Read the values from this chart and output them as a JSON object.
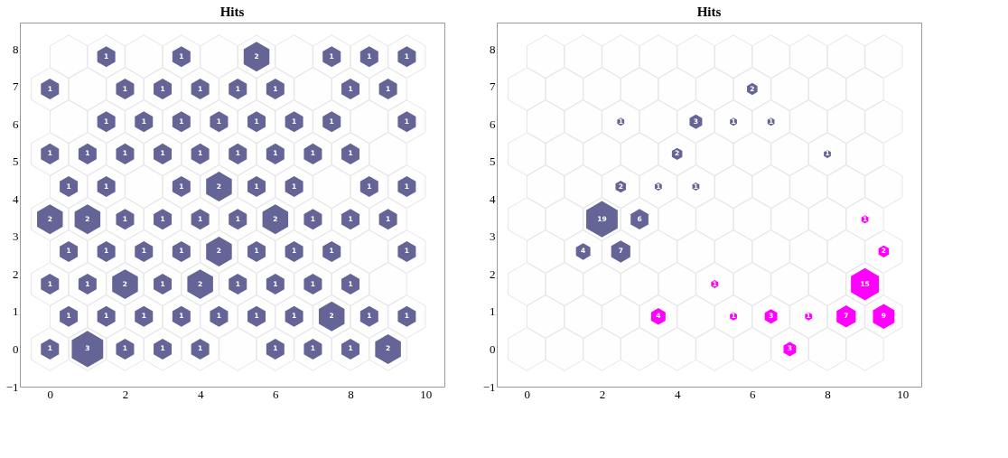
{
  "chart_data": [
    {
      "type": "bubble",
      "title": "Hits",
      "xlim": [
        -0.8,
        10.5
      ],
      "ylim": [
        -1,
        8.7
      ],
      "xticks": [
        0,
        2,
        4,
        6,
        8,
        10
      ],
      "yticks": [
        -1,
        0,
        1,
        2,
        3,
        4,
        5,
        6,
        7,
        8
      ],
      "grid": false,
      "series": [
        {
          "color": "#646496",
          "x": [
            0,
            1,
            2,
            3,
            4,
            6,
            7,
            8,
            9,
            0.5,
            1.5,
            2.5,
            3.5,
            4.5,
            5.5,
            6.5,
            7.5,
            8.5,
            9.5,
            0,
            1,
            2,
            3,
            4,
            5,
            6,
            7,
            8,
            0.5,
            1.5,
            2.5,
            3.5,
            4.5,
            5.5,
            6.5,
            7.5,
            9.5,
            0,
            1,
            2,
            3,
            4,
            5,
            6,
            7,
            8,
            9,
            0.5,
            1.5,
            3.5,
            4.5,
            5.5,
            6.5,
            8.5,
            9.5,
            0,
            1,
            2,
            3,
            4,
            5,
            6,
            7,
            8,
            1.5,
            2.5,
            3.5,
            4.5,
            5.5,
            6.5,
            7.5,
            9.5,
            0,
            2,
            3,
            4,
            5,
            6,
            8,
            9,
            1.5,
            3.5,
            5.5,
            7.5,
            8.5,
            9.5
          ],
          "values": [
            0,
            0,
            0,
            0,
            0,
            0,
            0,
            0,
            0,
            0.87,
            0.87,
            0.87,
            0.87,
            0.87,
            0.87,
            0.87,
            0.87,
            0.87,
            0.87,
            1.73,
            1.73,
            1.73,
            1.73,
            1.73,
            1.73,
            1.73,
            1.73,
            1.73,
            2.6,
            2.6,
            2.6,
            2.6,
            2.6,
            2.6,
            2.6,
            2.6,
            2.6,
            3.46,
            3.46,
            3.46,
            3.46,
            3.46,
            3.46,
            3.46,
            3.46,
            3.46,
            3.46,
            4.33,
            4.33,
            4.33,
            4.33,
            4.33,
            4.33,
            4.33,
            4.33,
            5.2,
            5.2,
            5.2,
            5.2,
            5.2,
            5.2,
            5.2,
            5.2,
            5.2,
            6.06,
            6.06,
            6.06,
            6.06,
            6.06,
            6.06,
            6.06,
            6.06,
            6.93,
            6.93,
            6.93,
            6.93,
            6.93,
            6.93,
            6.93,
            6.93,
            7.79,
            7.79,
            7.79,
            7.79,
            7.79,
            7.79
          ],
          "sizes": [
            0.33,
            1,
            0.33,
            0.33,
            0.33,
            0.33,
            0.33,
            0.33,
            0.67,
            0.33,
            0.33,
            0.33,
            0.33,
            0.33,
            0.33,
            0.33,
            0.67,
            0.33,
            0.33,
            0.33,
            0.33,
            0.67,
            0.33,
            0.67,
            0.33,
            0.33,
            0.33,
            0.33,
            0.33,
            0.33,
            0.33,
            0.33,
            0.67,
            0.33,
            0.33,
            0.33,
            0.33,
            0.67,
            0.67,
            0.33,
            0.33,
            0.33,
            0.33,
            0.67,
            0.33,
            0.33,
            0.33,
            0.33,
            0.33,
            0.33,
            0.67,
            0.33,
            0.33,
            0.33,
            0.33,
            0.33,
            0.33,
            0.33,
            0.33,
            0.33,
            0.33,
            0.33,
            0.33,
            0.33,
            0.33,
            0.33,
            0.33,
            0.33,
            0.33,
            0.33,
            0.33,
            0.33,
            0.33,
            0.33,
            0.33,
            0.33,
            0.33,
            0.33,
            0.33,
            0.33,
            0.33,
            0.33,
            0.67,
            0.33,
            0.33,
            0.33
          ]
        }
      ],
      "annotations": [
        {
          "text": "1",
          "x": 0,
          "y": 0
        },
        {
          "text": "3",
          "x": 1,
          "y": 0
        },
        {
          "text": "1",
          "x": 2,
          "y": 0
        },
        {
          "text": "1",
          "x": 3,
          "y": 0
        },
        {
          "text": "1",
          "x": 4,
          "y": 0
        },
        {
          "text": "1",
          "x": 6,
          "y": 0
        },
        {
          "text": "1",
          "x": 7,
          "y": 0
        },
        {
          "text": "1",
          "x": 8,
          "y": 0
        },
        {
          "text": "2",
          "x": 9,
          "y": 0
        },
        {
          "text": "1",
          "x": 0.5,
          "y": 0.87
        },
        {
          "text": "1",
          "x": 1.5,
          "y": 0.87
        },
        {
          "text": "1",
          "x": 2.5,
          "y": 0.87
        },
        {
          "text": "1",
          "x": 3.5,
          "y": 0.87
        },
        {
          "text": "1",
          "x": 4.5,
          "y": 0.87
        },
        {
          "text": "1",
          "x": 5.5,
          "y": 0.87
        },
        {
          "text": "1",
          "x": 6.5,
          "y": 0.87
        },
        {
          "text": "2",
          "x": 7.5,
          "y": 0.87
        },
        {
          "text": "1",
          "x": 8.5,
          "y": 0.87
        },
        {
          "text": "1",
          "x": 9.5,
          "y": 0.87
        },
        {
          "text": "1",
          "x": 0,
          "y": 1.73
        },
        {
          "text": "1",
          "x": 1,
          "y": 1.73
        },
        {
          "text": "2",
          "x": 2,
          "y": 1.73
        },
        {
          "text": "1",
          "x": 3,
          "y": 1.73
        },
        {
          "text": "2",
          "x": 4,
          "y": 1.73
        },
        {
          "text": "1",
          "x": 5,
          "y": 1.73
        },
        {
          "text": "1",
          "x": 6,
          "y": 1.73
        },
        {
          "text": "1",
          "x": 7,
          "y": 1.73
        },
        {
          "text": "1",
          "x": 8,
          "y": 1.73
        },
        {
          "text": "1",
          "x": 0.5,
          "y": 2.6
        },
        {
          "text": "1",
          "x": 1.5,
          "y": 2.6
        },
        {
          "text": "1",
          "x": 2.5,
          "y": 2.6
        },
        {
          "text": "1",
          "x": 3.5,
          "y": 2.6
        },
        {
          "text": "2",
          "x": 4.5,
          "y": 2.6
        },
        {
          "text": "1",
          "x": 5.5,
          "y": 2.6
        },
        {
          "text": "1",
          "x": 6.5,
          "y": 2.6
        },
        {
          "text": "1",
          "x": 7.5,
          "y": 2.6
        },
        {
          "text": "1",
          "x": 9.5,
          "y": 2.6
        },
        {
          "text": "2",
          "x": 0,
          "y": 3.46
        },
        {
          "text": "2",
          "x": 1,
          "y": 3.46
        },
        {
          "text": "1",
          "x": 2,
          "y": 3.46
        },
        {
          "text": "1",
          "x": 3,
          "y": 3.46
        },
        {
          "text": "1",
          "x": 4,
          "y": 3.46
        },
        {
          "text": "1",
          "x": 5,
          "y": 3.46
        },
        {
          "text": "2",
          "x": 6,
          "y": 3.46
        },
        {
          "text": "1",
          "x": 7,
          "y": 3.46
        },
        {
          "text": "1",
          "x": 8,
          "y": 3.46
        },
        {
          "text": "1",
          "x": 9,
          "y": 3.46
        },
        {
          "text": "1",
          "x": 0.5,
          "y": 4.33
        },
        {
          "text": "1",
          "x": 1.5,
          "y": 4.33
        },
        {
          "text": "1",
          "x": 3.5,
          "y": 4.33
        },
        {
          "text": "2",
          "x": 4.5,
          "y": 4.33
        },
        {
          "text": "1",
          "x": 5.5,
          "y": 4.33
        },
        {
          "text": "1",
          "x": 6.5,
          "y": 4.33
        },
        {
          "text": "1",
          "x": 8.5,
          "y": 4.33
        },
        {
          "text": "1",
          "x": 9.5,
          "y": 4.33
        },
        {
          "text": "1",
          "x": 0,
          "y": 5.2
        },
        {
          "text": "1",
          "x": 1,
          "y": 5.2
        },
        {
          "text": "1",
          "x": 2,
          "y": 5.2
        },
        {
          "text": "1",
          "x": 3,
          "y": 5.2
        },
        {
          "text": "1",
          "x": 4,
          "y": 5.2
        },
        {
          "text": "1",
          "x": 5,
          "y": 5.2
        },
        {
          "text": "1",
          "x": 6,
          "y": 5.2
        },
        {
          "text": "1",
          "x": 7,
          "y": 5.2
        },
        {
          "text": "1",
          "x": 8,
          "y": 5.2
        },
        {
          "text": "1",
          "x": 1.5,
          "y": 6.06
        },
        {
          "text": "1",
          "x": 2.5,
          "y": 6.06
        },
        {
          "text": "1",
          "x": 3.5,
          "y": 6.06
        },
        {
          "text": "1",
          "x": 4.5,
          "y": 6.06
        },
        {
          "text": "1",
          "x": 5.5,
          "y": 6.06
        },
        {
          "text": "1",
          "x": 6.5,
          "y": 6.06
        },
        {
          "text": "1",
          "x": 7.5,
          "y": 6.06
        },
        {
          "text": "1",
          "x": 9.5,
          "y": 6.06
        },
        {
          "text": "1",
          "x": 0,
          "y": 6.93
        },
        {
          "text": "1",
          "x": 2,
          "y": 6.93
        },
        {
          "text": "1",
          "x": 3,
          "y": 6.93
        },
        {
          "text": "1",
          "x": 4,
          "y": 6.93
        },
        {
          "text": "1",
          "x": 5,
          "y": 6.93
        },
        {
          "text": "1",
          "x": 6,
          "y": 6.93
        },
        {
          "text": "1",
          "x": 8,
          "y": 6.93
        },
        {
          "text": "1",
          "x": 9,
          "y": 6.93
        },
        {
          "text": "1",
          "x": 1.5,
          "y": 7.79
        },
        {
          "text": "1",
          "x": 3.5,
          "y": 7.79
        },
        {
          "text": "2",
          "x": 5.5,
          "y": 7.79
        },
        {
          "text": "1",
          "x": 7.5,
          "y": 7.79
        },
        {
          "text": "1",
          "x": 8.5,
          "y": 7.79
        },
        {
          "text": "1",
          "x": 9.5,
          "y": 7.79
        }
      ]
    },
    {
      "type": "bubble",
      "title": "Hits",
      "xlim": [
        -0.8,
        10.5
      ],
      "ylim": [
        -1,
        8.7
      ],
      "xticks": [
        0,
        2,
        4,
        6,
        8,
        10
      ],
      "yticks": [
        -1,
        0,
        1,
        2,
        3,
        4,
        5,
        6,
        7,
        8
      ],
      "grid": false,
      "series": [
        {
          "color": "#646496",
          "x": [
            6,
            2.5,
            4.5,
            5.5,
            6.5,
            4,
            8,
            2.5,
            3.5,
            4.5,
            2,
            3,
            1.5,
            2.5
          ],
          "values": [
            6.93,
            6.06,
            6.06,
            6.06,
            6.06,
            5.2,
            5.2,
            4.33,
            4.33,
            4.33,
            3.46,
            3.46,
            2.6,
            2.6
          ],
          "sizes": [
            0.11,
            0.05,
            0.16,
            0.05,
            0.05,
            0.11,
            0.05,
            0.11,
            0.05,
            0.05,
            1,
            0.32,
            0.21,
            0.37
          ]
        },
        {
          "color": "#ff00ff",
          "x": [
            9,
            9.5,
            5,
            9,
            3.5,
            5.5,
            6.5,
            7.5,
            8.5,
            9.5,
            7
          ],
          "values": [
            3.46,
            2.6,
            1.73,
            1.73,
            0.87,
            0.87,
            0.87,
            0.87,
            0.87,
            0.87,
            0
          ],
          "sizes": [
            0.05,
            0.11,
            0.05,
            0.79,
            0.21,
            0.05,
            0.16,
            0.05,
            0.37,
            0.47,
            0.16
          ]
        }
      ],
      "annotations": [
        {
          "text": "2",
          "x": 6,
          "y": 6.93
        },
        {
          "text": "1",
          "x": 2.5,
          "y": 6.06
        },
        {
          "text": "3",
          "x": 4.5,
          "y": 6.06
        },
        {
          "text": "1",
          "x": 5.5,
          "y": 6.06
        },
        {
          "text": "1",
          "x": 6.5,
          "y": 6.06
        },
        {
          "text": "2",
          "x": 4,
          "y": 5.2
        },
        {
          "text": "1",
          "x": 8,
          "y": 5.2
        },
        {
          "text": "2",
          "x": 2.5,
          "y": 4.33
        },
        {
          "text": "1",
          "x": 3.5,
          "y": 4.33
        },
        {
          "text": "1",
          "x": 4.5,
          "y": 4.33
        },
        {
          "text": "19",
          "x": 2,
          "y": 3.46
        },
        {
          "text": "6",
          "x": 3,
          "y": 3.46
        },
        {
          "text": "4",
          "x": 1.5,
          "y": 2.6
        },
        {
          "text": "7",
          "x": 2.5,
          "y": 2.6
        },
        {
          "text": "1",
          "x": 9,
          "y": 3.46
        },
        {
          "text": "2",
          "x": 9.5,
          "y": 2.6
        },
        {
          "text": "1",
          "x": 5,
          "y": 1.73
        },
        {
          "text": "15",
          "x": 9,
          "y": 1.73
        },
        {
          "text": "4",
          "x": 3.5,
          "y": 0.87
        },
        {
          "text": "1",
          "x": 5.5,
          "y": 0.87
        },
        {
          "text": "3",
          "x": 6.5,
          "y": 0.87
        },
        {
          "text": "1",
          "x": 7.5,
          "y": 0.87
        },
        {
          "text": "7",
          "x": 8.5,
          "y": 0.87
        },
        {
          "text": "9",
          "x": 9.5,
          "y": 0.87
        },
        {
          "text": "3",
          "x": 7,
          "y": 0
        }
      ]
    }
  ]
}
